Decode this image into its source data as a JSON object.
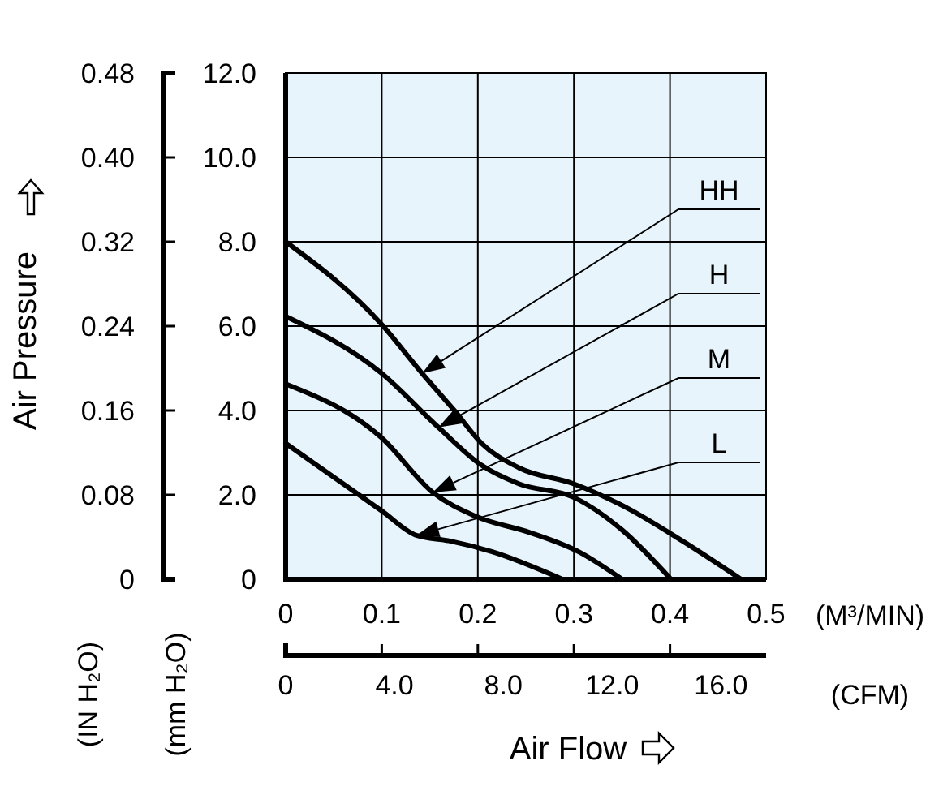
{
  "chart_data": {
    "type": "line",
    "xlabel": "(M³/MIN)",
    "x2label": "(CFM)",
    "ylabel": "(mm H₂O)",
    "y2label": "(IN H₂O)",
    "annotations": [
      "Air Pressure",
      "Air Flow"
    ],
    "xlim": [
      0,
      0.5
    ],
    "xticks": [
      {
        "value": 0,
        "label": "0"
      },
      {
        "value": 0.1,
        "label": "0.1"
      },
      {
        "value": 0.2,
        "label": "0.2"
      },
      {
        "value": 0.3,
        "label": "0.3"
      },
      {
        "value": 0.4,
        "label": "0.4"
      },
      {
        "value": 0.5,
        "label": "0.5"
      }
    ],
    "x2lim": [
      0,
      17.66
    ],
    "x2ticks": [
      {
        "value": 0,
        "label": "0"
      },
      {
        "value": 4,
        "label": "4.0"
      },
      {
        "value": 8,
        "label": "8.0"
      },
      {
        "value": 12,
        "label": "12.0"
      },
      {
        "value": 16,
        "label": "16.0"
      }
    ],
    "ylim": [
      0,
      12
    ],
    "yticks": [
      {
        "value": 0,
        "label": "0"
      },
      {
        "value": 2,
        "label": "2.0"
      },
      {
        "value": 4,
        "label": "4.0"
      },
      {
        "value": 6,
        "label": "6.0"
      },
      {
        "value": 8,
        "label": "8.0"
      },
      {
        "value": 10,
        "label": "10.0"
      },
      {
        "value": 12,
        "label": "12.0"
      }
    ],
    "y2lim": [
      0,
      0.48
    ],
    "y2ticks": [
      {
        "value": 0,
        "label": "0"
      },
      {
        "value": 0.08,
        "label": "0.08"
      },
      {
        "value": 0.16,
        "label": "0.16"
      },
      {
        "value": 0.24,
        "label": "0.24"
      },
      {
        "value": 0.32,
        "label": "0.32"
      },
      {
        "value": 0.4,
        "label": "0.40"
      },
      {
        "value": 0.48,
        "label": "0.48"
      }
    ],
    "grid": true,
    "series": [
      {
        "name": "HH",
        "color": "#000000",
        "x": [
          0,
          0.1,
          0.142,
          0.176,
          0.204,
          0.243,
          0.3,
          0.356,
          0.412,
          0.474
        ],
        "values": [
          8.0,
          6.04,
          4.88,
          3.99,
          3.22,
          2.64,
          2.26,
          1.68,
          0.92,
          0
        ]
      },
      {
        "name": "H",
        "color": "#000000",
        "x": [
          0,
          0.1,
          0.159,
          0.204,
          0.243,
          0.3,
          0.35,
          0.401
        ],
        "values": [
          6.23,
          4.88,
          3.6,
          2.7,
          2.26,
          1.94,
          1.17,
          0
        ]
      },
      {
        "name": "M",
        "color": "#000000",
        "x": [
          0,
          0.1,
          0.153,
          0.198,
          0.255,
          0.305,
          0.35
        ],
        "values": [
          4.63,
          3.35,
          2.06,
          1.49,
          1.1,
          0.65,
          0
        ]
      },
      {
        "name": "L",
        "color": "#000000",
        "x": [
          0,
          0.1,
          0.136,
          0.17,
          0.215,
          0.288
        ],
        "values": [
          3.22,
          1.62,
          1.04,
          0.91,
          0.65,
          0
        ]
      }
    ]
  }
}
